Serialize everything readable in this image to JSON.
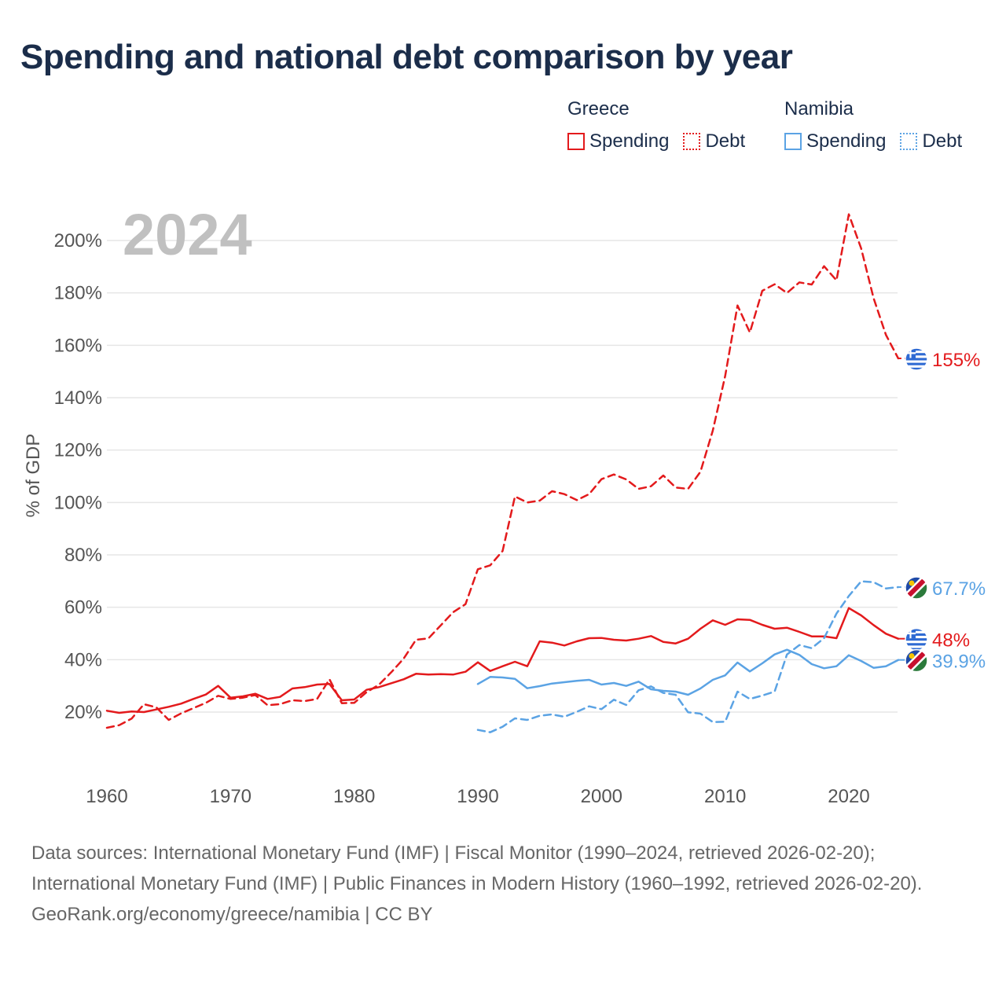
{
  "title": "Spending and national debt comparison by year",
  "legend": {
    "groups": [
      {
        "name": "Greece",
        "items": [
          "Spending",
          "Debt"
        ]
      },
      {
        "name": "Namibia",
        "items": [
          "Spending",
          "Debt"
        ]
      }
    ]
  },
  "year_label": "2024",
  "footer": {
    "sources": "Data sources: International Monetary Fund (IMF) | Fiscal Monitor (1990–2024, retrieved 2026-02-20); International Monetary Fund (IMF) | Public Finances in Modern History (1960–1992, retrieved 2026-02-20).",
    "credit": "GeoRank.org/economy/greece/namibia | CC BY"
  },
  "colors": {
    "greece": "#e31a1c",
    "namibia": "#5ba3e4",
    "grid": "#e6e6e6",
    "axis_text": "#555555",
    "title": "#1b2d4a",
    "year_watermark": "#c0c0c0"
  },
  "chart_data": {
    "type": "line",
    "title": "Spending and national debt comparison by year",
    "xlabel": "",
    "ylabel": "% of GDP",
    "xlim": [
      1960,
      2024
    ],
    "ylim": [
      0,
      215
    ],
    "x_ticks": [
      1960,
      1970,
      1980,
      1990,
      2000,
      2010,
      2020
    ],
    "x_tick_labels": [
      "1960",
      "1970",
      "1980",
      "1990",
      "2000",
      "2010",
      "2020"
    ],
    "y_ticks": [
      20,
      40,
      60,
      80,
      100,
      120,
      140,
      160,
      180,
      200
    ],
    "y_tick_labels": [
      "20%",
      "40%",
      "60%",
      "80%",
      "100%",
      "120%",
      "140%",
      "160%",
      "180%",
      "200%"
    ],
    "grid": true,
    "series": [
      {
        "name": "Greece Spending",
        "country": "Greece",
        "style": "solid",
        "color": "#e31a1c",
        "end_label": "48%",
        "x": [
          1960,
          1961,
          1962,
          1963,
          1964,
          1965,
          1966,
          1967,
          1968,
          1969,
          1970,
          1971,
          1972,
          1973,
          1974,
          1975,
          1976,
          1977,
          1978,
          1979,
          1980,
          1981,
          1982,
          1983,
          1984,
          1985,
          1986,
          1987,
          1988,
          1989,
          1990,
          1991,
          1992,
          1993,
          1994,
          1995,
          1996,
          1997,
          1998,
          1999,
          2000,
          2001,
          2002,
          2003,
          2004,
          2005,
          2006,
          2007,
          2008,
          2009,
          2010,
          2011,
          2012,
          2013,
          2014,
          2015,
          2016,
          2017,
          2018,
          2019,
          2020,
          2021,
          2022,
          2023,
          2024
        ],
        "values": [
          20.5,
          19.7,
          20.2,
          20.0,
          21.0,
          22.0,
          23.2,
          25.0,
          26.7,
          30.0,
          25.5,
          26.0,
          27.0,
          25.0,
          25.8,
          29.0,
          29.5,
          30.5,
          30.7,
          24.5,
          24.8,
          28.5,
          29.5,
          31.0,
          32.5,
          34.6,
          34.3,
          34.5,
          34.3,
          35.4,
          39.0,
          35.7,
          37.5,
          39.2,
          37.5,
          47.0,
          46.5,
          45.4,
          47.0,
          48.2,
          48.3,
          47.6,
          47.3,
          48.0,
          49.0,
          46.8,
          46.2,
          48.0,
          51.8,
          55.0,
          53.3,
          55.4,
          55.2,
          53.3,
          51.8,
          52.2,
          50.6,
          48.9,
          48.9,
          48.2,
          59.7,
          56.9,
          53.2,
          49.9,
          48.0
        ]
      },
      {
        "name": "Greece Debt",
        "country": "Greece",
        "style": "dashed",
        "color": "#e31a1c",
        "end_label": "155%",
        "x": [
          1960,
          1961,
          1962,
          1963,
          1964,
          1965,
          1966,
          1967,
          1968,
          1969,
          1970,
          1971,
          1972,
          1973,
          1974,
          1975,
          1976,
          1977,
          1978,
          1979,
          1980,
          1981,
          1982,
          1983,
          1984,
          1985,
          1986,
          1987,
          1988,
          1989,
          1990,
          1991,
          1992,
          1993,
          1994,
          1995,
          1996,
          1997,
          1998,
          1999,
          2000,
          2001,
          2002,
          2003,
          2004,
          2005,
          2006,
          2007,
          2008,
          2009,
          2010,
          2011,
          2012,
          2013,
          2014,
          2015,
          2016,
          2017,
          2018,
          2019,
          2020,
          2021,
          2022,
          2023,
          2024
        ],
        "values": [
          14.0,
          15.0,
          17.5,
          23.0,
          21.8,
          17.0,
          19.5,
          21.5,
          23.5,
          26.2,
          25.0,
          25.5,
          26.5,
          22.6,
          23.0,
          24.5,
          24.2,
          25.0,
          32.5,
          23.4,
          23.5,
          27.6,
          30.4,
          35.2,
          40.4,
          47.6,
          48.1,
          53.1,
          58.1,
          61.2,
          74.5,
          76.0,
          81.5,
          102.3,
          100.0,
          100.7,
          104.3,
          103.2,
          100.9,
          103.2,
          108.9,
          110.7,
          108.8,
          105.2,
          106.2,
          110.3,
          105.7,
          105.2,
          111.7,
          127.4,
          148.3,
          175.2,
          164.9,
          180.8,
          183.3,
          180.0,
          184.0,
          183.2,
          190.2,
          184.8,
          210.0,
          197.0,
          178.0,
          164.0,
          155.0
        ]
      },
      {
        "name": "Namibia Spending",
        "country": "Namibia",
        "style": "solid",
        "color": "#5ba3e4",
        "end_label": "39.9%",
        "x": [
          1990,
          1991,
          1992,
          1993,
          1994,
          1995,
          1996,
          1997,
          1998,
          1999,
          2000,
          2001,
          2002,
          2003,
          2004,
          2005,
          2006,
          2007,
          2008,
          2009,
          2010,
          2011,
          2012,
          2013,
          2014,
          2015,
          2016,
          2017,
          2018,
          2019,
          2020,
          2021,
          2022,
          2023,
          2024
        ],
        "values": [
          30.7,
          33.4,
          33.2,
          32.7,
          29.1,
          29.9,
          30.9,
          31.4,
          31.9,
          32.3,
          30.5,
          31.1,
          30.0,
          31.6,
          28.7,
          28.1,
          27.8,
          26.6,
          29.0,
          32.3,
          34.0,
          38.9,
          35.5,
          38.6,
          42.0,
          43.8,
          41.8,
          38.3,
          36.7,
          37.5,
          41.7,
          39.5,
          36.9,
          37.5,
          39.9
        ]
      },
      {
        "name": "Namibia Debt",
        "country": "Namibia",
        "style": "dashed",
        "color": "#5ba3e4",
        "end_label": "67.7%",
        "x": [
          1990,
          1991,
          1992,
          1993,
          1994,
          1995,
          1996,
          1997,
          1998,
          1999,
          2000,
          2001,
          2002,
          2003,
          2004,
          2005,
          2006,
          2007,
          2008,
          2009,
          2010,
          2011,
          2012,
          2013,
          2014,
          2015,
          2016,
          2017,
          2018,
          2019,
          2020,
          2021,
          2022,
          2023,
          2024
        ],
        "values": [
          13.2,
          12.3,
          14.4,
          17.6,
          17.0,
          18.6,
          19.1,
          18.2,
          20.1,
          22.2,
          21.1,
          24.7,
          22.7,
          28.3,
          29.8,
          27.3,
          26.6,
          19.9,
          19.4,
          16.2,
          16.3,
          27.8,
          25.0,
          26.3,
          27.8,
          42.0,
          45.6,
          44.4,
          48.2,
          57.6,
          64.3,
          69.9,
          69.6,
          67.2,
          67.7
        ]
      }
    ]
  }
}
